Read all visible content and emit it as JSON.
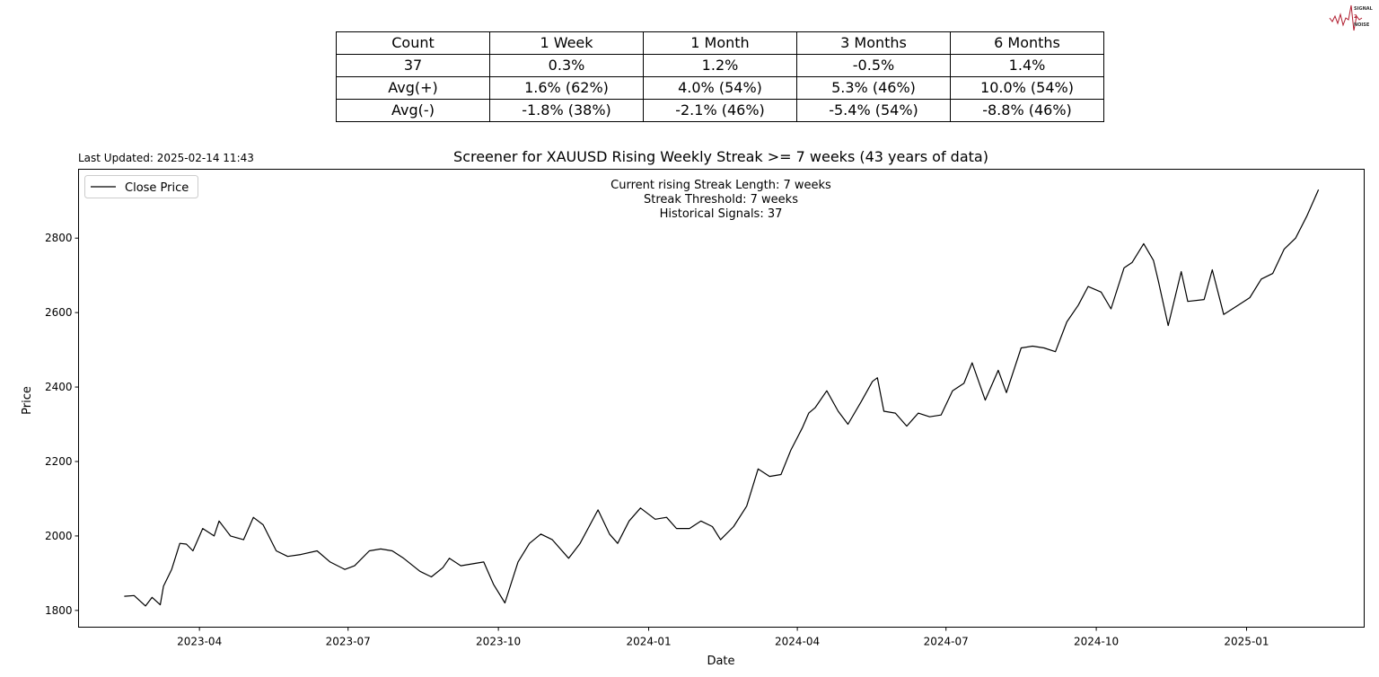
{
  "logo": {
    "text": "SIGNAL 2 NOISE",
    "color": "#b01c2e"
  },
  "stats_table": {
    "header": [
      "Count",
      "1 Week",
      "1 Month",
      "3 Months",
      "6 Months"
    ],
    "rows": [
      [
        "37",
        "0.3%",
        "1.2%",
        "-0.5%",
        "1.4%"
      ],
      [
        "Avg(+)",
        "1.6% (62%)",
        "4.0% (54%)",
        "5.3% (46%)",
        "10.0% (54%)"
      ],
      [
        "Avg(-)",
        "-1.8% (38%)",
        "-2.1% (46%)",
        "-5.4% (54%)",
        "-8.8% (46%)"
      ]
    ]
  },
  "chart_data": {
    "type": "line",
    "title": "Screener for XAUUSD Rising Weekly Streak >= 7 weeks (43 years of data)",
    "last_updated": "Last Updated: 2025-02-14 11:43",
    "xlabel": "Date",
    "ylabel": "Price",
    "annotations": [
      "Current rising Streak Length: 7 weeks",
      "Streak Threshold: 7 weeks",
      "Historical Signals: 37"
    ],
    "legend": {
      "position": "top-left",
      "entries": [
        "Close Price"
      ]
    },
    "grid": false,
    "xlim": [
      "2023-01-17",
      "2025-03-14"
    ],
    "ylim": [
      1755,
      2985
    ],
    "xticks": [
      "2023-04",
      "2023-07",
      "2023-10",
      "2024-01",
      "2024-04",
      "2024-07",
      "2024-10",
      "2025-01"
    ],
    "yticks": [
      1800,
      2000,
      2200,
      2400,
      2600,
      2800
    ],
    "series": [
      {
        "name": "Close Price",
        "color": "#000000",
        "points": [
          [
            "2023-02-14",
            1838
          ],
          [
            "2023-02-20",
            1840
          ],
          [
            "2023-02-27",
            1812
          ],
          [
            "2023-03-03",
            1835
          ],
          [
            "2023-03-08",
            1815
          ],
          [
            "2023-03-10",
            1865
          ],
          [
            "2023-03-15",
            1910
          ],
          [
            "2023-03-20",
            1980
          ],
          [
            "2023-03-24",
            1978
          ],
          [
            "2023-03-28",
            1960
          ],
          [
            "2023-04-03",
            2020
          ],
          [
            "2023-04-10",
            2000
          ],
          [
            "2023-04-13",
            2040
          ],
          [
            "2023-04-20",
            2000
          ],
          [
            "2023-04-28",
            1990
          ],
          [
            "2023-05-04",
            2050
          ],
          [
            "2023-05-10",
            2030
          ],
          [
            "2023-05-18",
            1960
          ],
          [
            "2023-05-25",
            1945
          ],
          [
            "2023-06-02",
            1950
          ],
          [
            "2023-06-12",
            1960
          ],
          [
            "2023-06-20",
            1930
          ],
          [
            "2023-06-29",
            1910
          ],
          [
            "2023-07-05",
            1920
          ],
          [
            "2023-07-14",
            1960
          ],
          [
            "2023-07-21",
            1965
          ],
          [
            "2023-07-28",
            1960
          ],
          [
            "2023-08-04",
            1940
          ],
          [
            "2023-08-14",
            1905
          ],
          [
            "2023-08-21",
            1890
          ],
          [
            "2023-08-28",
            1915
          ],
          [
            "2023-09-01",
            1940
          ],
          [
            "2023-09-08",
            1920
          ],
          [
            "2023-09-15",
            1925
          ],
          [
            "2023-09-22",
            1930
          ],
          [
            "2023-09-28",
            1870
          ],
          [
            "2023-10-05",
            1820
          ],
          [
            "2023-10-13",
            1930
          ],
          [
            "2023-10-20",
            1980
          ],
          [
            "2023-10-27",
            2005
          ],
          [
            "2023-11-03",
            1990
          ],
          [
            "2023-11-13",
            1940
          ],
          [
            "2023-11-20",
            1980
          ],
          [
            "2023-12-01",
            2070
          ],
          [
            "2023-12-08",
            2005
          ],
          [
            "2023-12-13",
            1980
          ],
          [
            "2023-12-20",
            2040
          ],
          [
            "2023-12-27",
            2075
          ],
          [
            "2024-01-05",
            2045
          ],
          [
            "2024-01-12",
            2050
          ],
          [
            "2024-01-18",
            2020
          ],
          [
            "2024-01-26",
            2020
          ],
          [
            "2024-02-02",
            2040
          ],
          [
            "2024-02-09",
            2025
          ],
          [
            "2024-02-14",
            1990
          ],
          [
            "2024-02-22",
            2025
          ],
          [
            "2024-03-01",
            2080
          ],
          [
            "2024-03-08",
            2180
          ],
          [
            "2024-03-15",
            2160
          ],
          [
            "2024-03-22",
            2165
          ],
          [
            "2024-03-28",
            2230
          ],
          [
            "2024-04-04",
            2290
          ],
          [
            "2024-04-08",
            2330
          ],
          [
            "2024-04-12",
            2345
          ],
          [
            "2024-04-19",
            2390
          ],
          [
            "2024-04-26",
            2335
          ],
          [
            "2024-05-02",
            2300
          ],
          [
            "2024-05-10",
            2360
          ],
          [
            "2024-05-17",
            2415
          ],
          [
            "2024-05-20",
            2425
          ],
          [
            "2024-05-24",
            2335
          ],
          [
            "2024-05-31",
            2330
          ],
          [
            "2024-06-07",
            2295
          ],
          [
            "2024-06-14",
            2330
          ],
          [
            "2024-06-21",
            2320
          ],
          [
            "2024-06-28",
            2325
          ],
          [
            "2024-07-05",
            2390
          ],
          [
            "2024-07-12",
            2410
          ],
          [
            "2024-07-17",
            2465
          ],
          [
            "2024-07-25",
            2365
          ],
          [
            "2024-08-02",
            2445
          ],
          [
            "2024-08-07",
            2385
          ],
          [
            "2024-08-16",
            2505
          ],
          [
            "2024-08-23",
            2510
          ],
          [
            "2024-08-30",
            2505
          ],
          [
            "2024-09-06",
            2495
          ],
          [
            "2024-09-13",
            2575
          ],
          [
            "2024-09-20",
            2620
          ],
          [
            "2024-09-26",
            2670
          ],
          [
            "2024-10-04",
            2655
          ],
          [
            "2024-10-10",
            2610
          ],
          [
            "2024-10-18",
            2720
          ],
          [
            "2024-10-23",
            2735
          ],
          [
            "2024-10-30",
            2785
          ],
          [
            "2024-11-05",
            2740
          ],
          [
            "2024-11-08",
            2685
          ],
          [
            "2024-11-14",
            2565
          ],
          [
            "2024-11-22",
            2710
          ],
          [
            "2024-11-26",
            2630
          ],
          [
            "2024-12-06",
            2635
          ],
          [
            "2024-12-11",
            2715
          ],
          [
            "2024-12-18",
            2595
          ],
          [
            "2024-12-27",
            2620
          ],
          [
            "2025-01-03",
            2640
          ],
          [
            "2025-01-10",
            2690
          ],
          [
            "2025-01-17",
            2705
          ],
          [
            "2025-01-24",
            2770
          ],
          [
            "2025-01-31",
            2800
          ],
          [
            "2025-02-07",
            2860
          ],
          [
            "2025-02-11",
            2900
          ],
          [
            "2025-02-14",
            2930
          ]
        ]
      }
    ]
  }
}
